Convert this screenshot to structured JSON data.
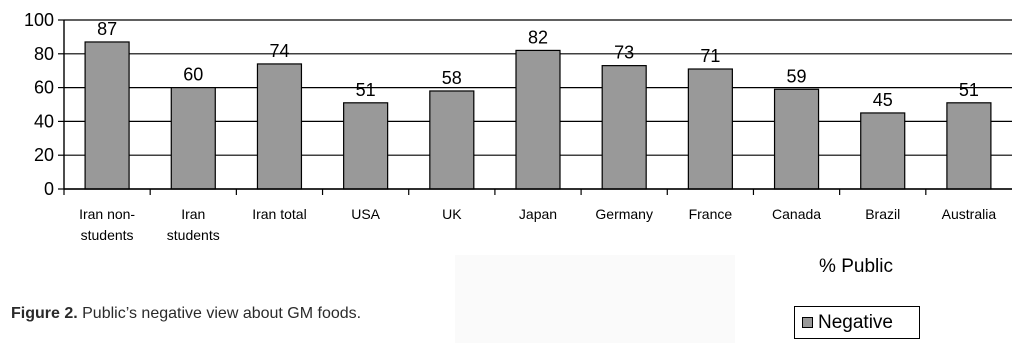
{
  "chart_data": {
    "type": "bar",
    "categories": [
      [
        "Iran non-",
        "students"
      ],
      [
        "Iran",
        "students"
      ],
      [
        "Iran total"
      ],
      [
        "USA"
      ],
      [
        "UK"
      ],
      [
        "Japan"
      ],
      [
        "Germany"
      ],
      [
        "France"
      ],
      [
        "Canada"
      ],
      [
        "Brazil"
      ],
      [
        "Australia"
      ]
    ],
    "series": [
      {
        "name": "Negative",
        "values": [
          87,
          60,
          74,
          51,
          58,
          82,
          73,
          71,
          59,
          45,
          51
        ]
      }
    ],
    "data_labels": [
      "87",
      "60",
      "74",
      "51",
      "58",
      "82",
      "73",
      "71",
      "59",
      "45",
      "51"
    ],
    "yticks": [
      0,
      20,
      40,
      60,
      80,
      100
    ],
    "ylim": [
      0,
      100
    ],
    "xlabel": "% Public",
    "ylabel": "",
    "title": "",
    "grid": true,
    "legend_position": "bottom-right",
    "colors": {
      "bar_fill": "#999999",
      "bar_stroke": "#000000",
      "axis": "#000000",
      "text": "#000000"
    }
  },
  "caption": {
    "label": "Figure 2.",
    "text": " Public’s negative view about GM foods."
  },
  "legend": {
    "label": "Negative"
  }
}
